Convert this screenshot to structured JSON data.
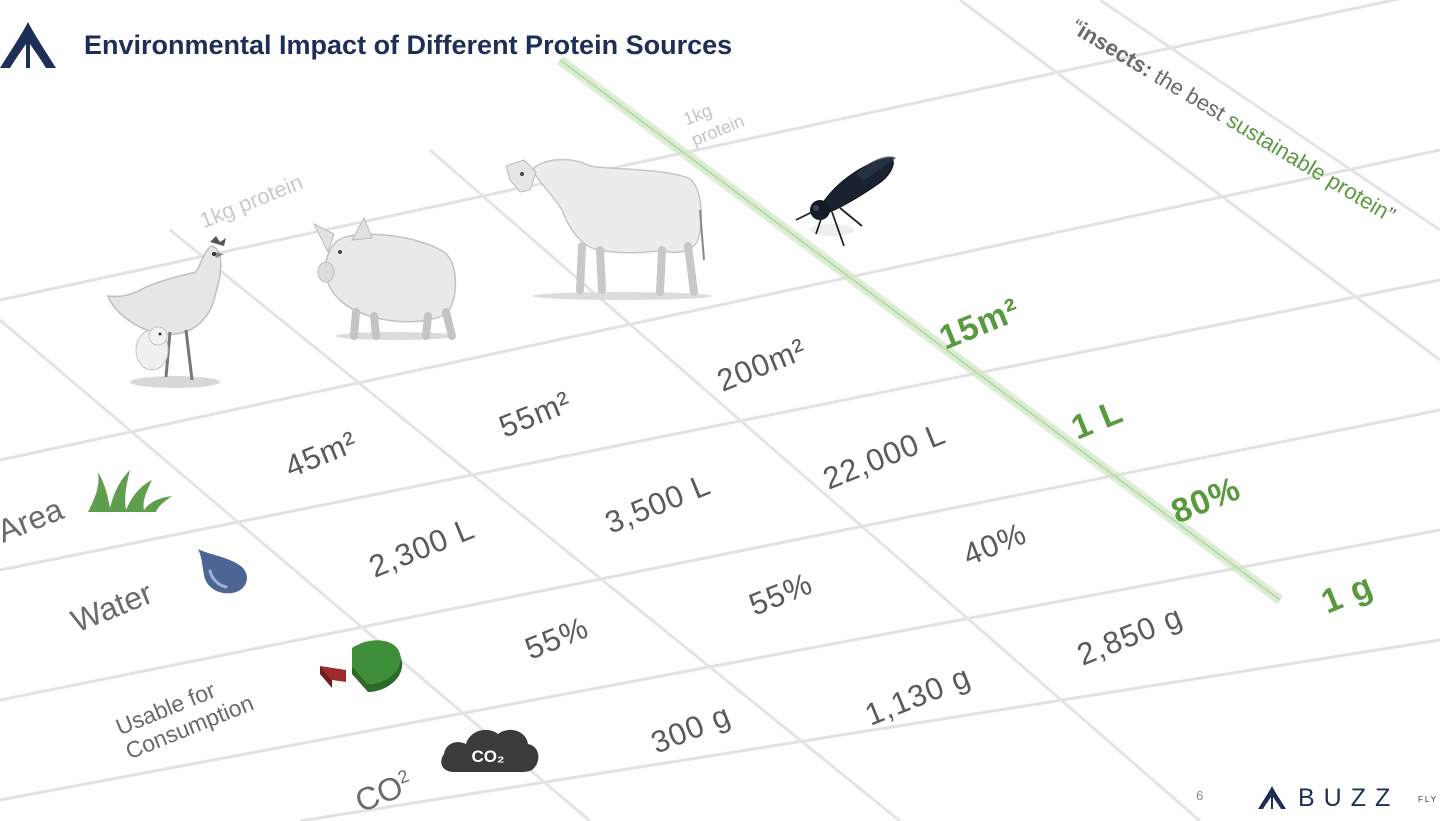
{
  "slide": {
    "title": "Environmental Impact of Different Protein Sources",
    "page_number": "6"
  },
  "quote": {
    "open": "“",
    "keyword": "insects:",
    "middle": " the best ",
    "highlight": "sustainable protein",
    "close": "”"
  },
  "protein_labels": {
    "main": "1kg protein",
    "insect": "1kg protein"
  },
  "animals": [
    "chicken",
    "pig",
    "cow",
    "insect"
  ],
  "rows": [
    {
      "label": "Area",
      "icon": "grass-icon",
      "values": [
        "45m²",
        "55m²",
        "200m²",
        "15m²"
      ]
    },
    {
      "label": "Water",
      "icon": "water-drop-icon",
      "values": [
        "2,300 L",
        "3,500 L",
        "22,000 L",
        "1 L"
      ]
    },
    {
      "label": "Usable for Consumption",
      "icon": "pie-chart-icon",
      "values": [
        "55%",
        "55%",
        "40%",
        "80%"
      ]
    },
    {
      "label_main": "CO",
      "label_sup": "2",
      "icon": "co2-cloud-icon",
      "icon_text": "CO₂",
      "values": [
        "300 g",
        "1,130 g",
        "2,850 g",
        "1 g"
      ]
    }
  ],
  "footer": {
    "brand": "BUZZ",
    "brand_suffix": "FLY"
  },
  "colors": {
    "navy": "#1e2f57",
    "green": "#5a9a3e",
    "gray_text": "#5a5a5a",
    "water_blue": "#4d6594",
    "pie_green": "#3f8f3a",
    "pie_red": "#9c2a2a"
  }
}
